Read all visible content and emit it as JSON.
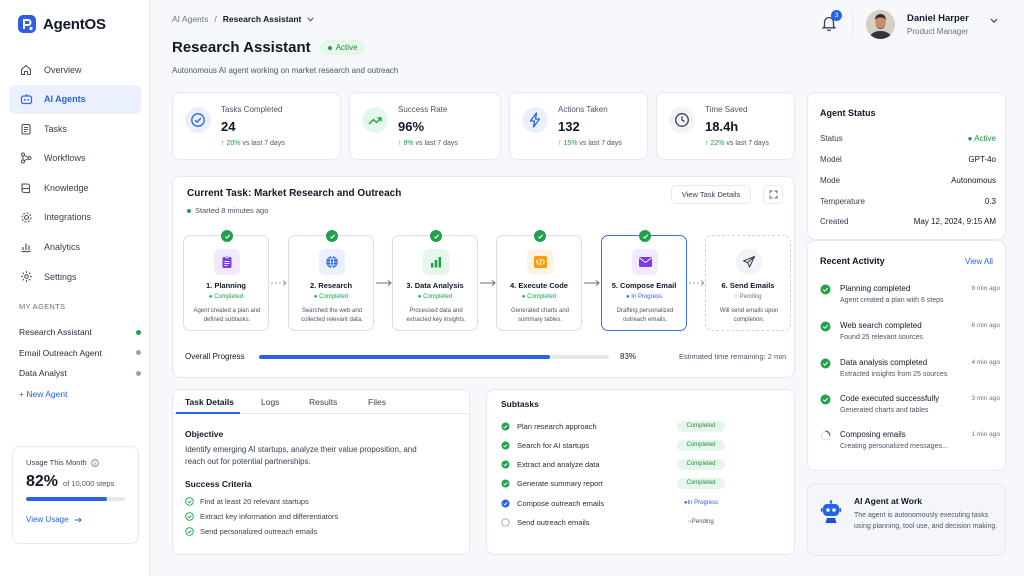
{
  "app": {
    "name": "AgentOS"
  },
  "sidebar": {
    "items": [
      {
        "label": "Overview",
        "icon": "home-icon"
      },
      {
        "label": "AI Agents",
        "icon": "bot-icon"
      },
      {
        "label": "Tasks",
        "icon": "clipboard-icon"
      },
      {
        "label": "Workflows",
        "icon": "workflow-icon"
      },
      {
        "label": "Knowledge",
        "icon": "book-icon"
      },
      {
        "label": "Integrations",
        "icon": "gear-icon"
      },
      {
        "label": "Analytics",
        "icon": "chart-icon"
      },
      {
        "label": "Settings",
        "icon": "settings-icon"
      }
    ],
    "my_agents_label": "MY AGENTS",
    "agents": [
      {
        "name": "Research Assistant",
        "status_color": "#22a04b"
      },
      {
        "name": "Email Outreach Agent",
        "status_color": "#9ca3af"
      },
      {
        "name": "Data Analyst",
        "status_color": "#9ca3af"
      }
    ],
    "new_agent_label": "+ New Agent",
    "usage": {
      "title": "Usage This Month",
      "percent_label": "82%",
      "percent_value": 82,
      "limit_label": "of 10,000 steps",
      "link_label": "View Usage"
    }
  },
  "header": {
    "breadcrumb_parent": "AI Agents",
    "breadcrumb_sep": "/",
    "breadcrumb_current": "Research Assistant",
    "title": "Research Assistant",
    "status": "Active",
    "subtitle": "Autonomous AI agent working on market research and outreach",
    "notification_count": "3",
    "user_name": "Daniel Harper",
    "user_role": "Product Manager"
  },
  "stats": [
    {
      "label": "Tasks Completed",
      "value": "24",
      "delta": "↑ 20%",
      "delta_note": "vs last 7 days",
      "icon": "check-circle-icon",
      "icon_bg": "#eaf0fd",
      "icon_color": "#2563eb"
    },
    {
      "label": "Success Rate",
      "value": "96%",
      "delta": "↑ 8%",
      "delta_note": "vs last 7 days",
      "icon": "trend-up-icon",
      "icon_bg": "#e7f6ea",
      "icon_color": "#16a34a"
    },
    {
      "label": "Actions Taken",
      "value": "132",
      "delta": "↑ 15%",
      "delta_note": "vs last 7 days",
      "icon": "lightning-icon",
      "icon_bg": "#eaf0fd",
      "icon_color": "#2563eb"
    },
    {
      "label": "Time Saved",
      "value": "18.4h",
      "delta": "↑ 22%",
      "delta_note": "vs last 7 days",
      "icon": "clock-icon",
      "icon_bg": "#f1f3f7",
      "icon_color": "#374151"
    }
  ],
  "current_task": {
    "title": "Current Task: Market Research and Outreach",
    "started": "Started 8 minutes ago",
    "view_details_label": "View Task Details",
    "steps": [
      {
        "name": "1. Planning",
        "status": "Completed",
        "desc1": "Agent created a plan and",
        "desc2": "defined subtasks.",
        "icon": "clipboard-icon",
        "icon_bg": "#f1eafe",
        "icon_color": "#7c3aed",
        "state": "done"
      },
      {
        "name": "2. Research",
        "status": "Completed",
        "desc1": "Searched the web and",
        "desc2": "collected relevant data.",
        "icon": "globe-icon",
        "icon_bg": "#eaf0fd",
        "icon_color": "#2563eb",
        "state": "done"
      },
      {
        "name": "3. Data Analysis",
        "status": "Completed",
        "desc1": "Processed data and",
        "desc2": "extracted key insights.",
        "icon": "bar-chart-icon",
        "icon_bg": "#e7f6ea",
        "icon_color": "#16a34a",
        "state": "done"
      },
      {
        "name": "4. Execute Code",
        "status": "Completed",
        "desc1": "Generated charts and",
        "desc2": "summary tables.",
        "icon": "code-icon",
        "icon_bg": "#fef3e2",
        "icon_color": "#f59e0b",
        "state": "done"
      },
      {
        "name": "5. Compose Email",
        "status": "In Progress",
        "desc1": "Drafting personalized",
        "desc2": "outreach emails.",
        "icon": "mail-icon",
        "icon_bg": "#f1eafe",
        "icon_color": "#7c3aed",
        "state": "current"
      },
      {
        "name": "6. Send Emails",
        "status": "Pending",
        "desc1": "Will send emails upon",
        "desc2": "completion.",
        "icon": "send-icon",
        "icon_bg": "#f1f3f7",
        "icon_color": "#374151",
        "state": "pending"
      }
    ],
    "progress_label": "Overall Progress",
    "progress_value": 83,
    "progress_text": "83%",
    "eta": "Estimated time remaining: 2 min"
  },
  "details": {
    "tabs": [
      "Task Details",
      "Logs",
      "Results",
      "Files"
    ],
    "objective_title": "Objective",
    "objective_line1": "Identify emerging AI startups, analyze their value proposition, and",
    "objective_line2": "reach out for potential partnerships.",
    "criteria_title": "Success Criteria",
    "criteria": [
      "Find at least 20 relevant startups",
      "Extract key information and differentiators",
      "Send personalized outreach emails"
    ]
  },
  "subtasks": {
    "title": "Subtasks",
    "items": [
      {
        "label": "Plan research approach",
        "status": "Completed",
        "state": "done"
      },
      {
        "label": "Search for AI startups",
        "status": "Completed",
        "state": "done"
      },
      {
        "label": "Extract and analyze data",
        "status": "Completed",
        "state": "done"
      },
      {
        "label": "Generate summary report",
        "status": "Completed",
        "state": "done"
      },
      {
        "label": "Compose outreach emails",
        "status": "In Progress",
        "state": "prog"
      },
      {
        "label": "Send outreach emails",
        "status": "Pending",
        "state": "pend"
      }
    ]
  },
  "agent_status": {
    "title": "Agent Status",
    "rows": [
      {
        "key": "Status",
        "value": "Active"
      },
      {
        "key": "Model",
        "value": "GPT-4o"
      },
      {
        "key": "Mode",
        "value": "Autonomous"
      },
      {
        "key": "Temperature",
        "value": "0.3"
      },
      {
        "key": "Created",
        "value": "May 12, 2024, 9:15 AM"
      }
    ]
  },
  "activity": {
    "title": "Recent Activity",
    "view_all": "View All",
    "items": [
      {
        "title": "Planning completed",
        "time": "8 min ago",
        "desc": "Agent created a plan with 6 steps",
        "state": "done"
      },
      {
        "title": "Web search completed",
        "time": "6 min ago",
        "desc": "Found 25 relevant sources",
        "state": "done"
      },
      {
        "title": "Data analysis completed",
        "time": "4 min ago",
        "desc": "Extracted insights from 25 sources",
        "state": "done"
      },
      {
        "title": "Code executed successfully",
        "time": "3 min ago",
        "desc": "Generated charts and tables",
        "state": "done"
      },
      {
        "title": "Composing emails",
        "time": "1 min ago",
        "desc": "Creating personalized messages...",
        "state": "prog"
      }
    ]
  },
  "agent_work": {
    "title": "AI Agent at Work",
    "line1": "The agent is autonomously executing tasks",
    "line2": "using planning, tool use, and decision making."
  }
}
